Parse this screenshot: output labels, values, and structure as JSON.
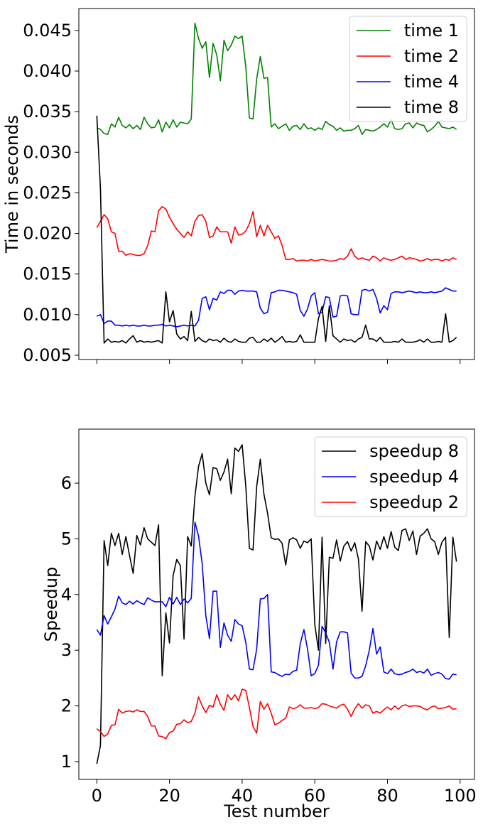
{
  "chart_data": [
    {
      "type": "line",
      "ylabel": "Time in seconds",
      "x": [
        0,
        1,
        2,
        3,
        4,
        5,
        6,
        7,
        8,
        9,
        10,
        11,
        12,
        13,
        14,
        15,
        16,
        17,
        18,
        19,
        20,
        21,
        22,
        23,
        24,
        25,
        26,
        27,
        28,
        29,
        30,
        31,
        32,
        33,
        34,
        35,
        36,
        37,
        38,
        39,
        40,
        41,
        42,
        43,
        44,
        45,
        46,
        47,
        48,
        49,
        50,
        51,
        52,
        53,
        54,
        55,
        56,
        57,
        58,
        59,
        60,
        61,
        62,
        63,
        64,
        65,
        66,
        67,
        68,
        69,
        70,
        71,
        72,
        73,
        74,
        75,
        76,
        77,
        78,
        79,
        80,
        81,
        82,
        83,
        84,
        85,
        86,
        87,
        88,
        89,
        90,
        91,
        92,
        93,
        94,
        95,
        96,
        97,
        98,
        99
      ],
      "series": [
        {
          "name": "time 1",
          "color": "#008000",
          "values": [
            0.033,
            0.0328,
            0.0323,
            0.0322,
            0.0335,
            0.0331,
            0.0343,
            0.0333,
            0.033,
            0.0334,
            0.0329,
            0.0333,
            0.0328,
            0.0343,
            0.0335,
            0.033,
            0.0331,
            0.034,
            0.0325,
            0.0337,
            0.033,
            0.034,
            0.0331,
            0.0337,
            0.0336,
            0.0335,
            0.0341,
            0.0459,
            0.044,
            0.0428,
            0.0436,
            0.0392,
            0.0434,
            0.042,
            0.0388,
            0.0438,
            0.0425,
            0.0432,
            0.0443,
            0.044,
            0.0443,
            0.0405,
            0.0342,
            0.0341,
            0.039,
            0.0418,
            0.0391,
            0.0392,
            0.0331,
            0.0335,
            0.0329,
            0.0332,
            0.0335,
            0.0327,
            0.0332,
            0.0333,
            0.0328,
            0.0335,
            0.0329,
            0.033,
            0.0327,
            0.033,
            0.0328,
            0.0338,
            0.0334,
            0.0332,
            0.0327,
            0.033,
            0.0326,
            0.0327,
            0.0327,
            0.0329,
            0.0333,
            0.0322,
            0.0328,
            0.0327,
            0.0326,
            0.0328,
            0.0331,
            0.0335,
            0.0331,
            0.034,
            0.0329,
            0.0328,
            0.0329,
            0.0335,
            0.0336,
            0.033,
            0.0336,
            0.0334,
            0.0333,
            0.0325,
            0.0328,
            0.0332,
            0.0338,
            0.0331,
            0.033,
            0.0329,
            0.0331,
            0.0328
          ]
        },
        {
          "name": "time 2",
          "color": "#ff0000",
          "values": [
            0.0207,
            0.0215,
            0.0223,
            0.0218,
            0.0202,
            0.02,
            0.0178,
            0.0178,
            0.0173,
            0.0175,
            0.0174,
            0.0173,
            0.0173,
            0.0175,
            0.0185,
            0.0203,
            0.0202,
            0.0228,
            0.0233,
            0.023,
            0.022,
            0.0212,
            0.0205,
            0.02,
            0.0195,
            0.0202,
            0.0197,
            0.0215,
            0.0222,
            0.0223,
            0.0215,
            0.0195,
            0.0197,
            0.0208,
            0.0202,
            0.0202,
            0.0202,
            0.0188,
            0.0208,
            0.0198,
            0.0199,
            0.0203,
            0.0212,
            0.0227,
            0.0196,
            0.021,
            0.0197,
            0.021,
            0.0202,
            0.0194,
            0.0197,
            0.0185,
            0.0168,
            0.0168,
            0.0169,
            0.0166,
            0.0167,
            0.0167,
            0.0166,
            0.0168,
            0.0166,
            0.0167,
            0.0168,
            0.0167,
            0.0166,
            0.0166,
            0.0167,
            0.0169,
            0.0168,
            0.0172,
            0.0181,
            0.0172,
            0.0168,
            0.017,
            0.0168,
            0.0167,
            0.0172,
            0.017,
            0.0166,
            0.017,
            0.0168,
            0.0167,
            0.0168,
            0.017,
            0.0172,
            0.0168,
            0.017,
            0.0169,
            0.0168,
            0.0166,
            0.0167,
            0.0169,
            0.0167,
            0.0168,
            0.0168,
            0.0166,
            0.0168,
            0.0167,
            0.017,
            0.0168
          ]
        },
        {
          "name": "time 4",
          "color": "#0000ff",
          "values": [
            0.0098,
            0.01,
            0.0089,
            0.0092,
            0.0092,
            0.0087,
            0.0087,
            0.0086,
            0.0087,
            0.0086,
            0.0087,
            0.0086,
            0.0086,
            0.0087,
            0.0086,
            0.0086,
            0.0087,
            0.0087,
            0.0088,
            0.0086,
            0.0087,
            0.0086,
            0.0085,
            0.0086,
            0.0087,
            0.0086,
            0.0087,
            0.0086,
            0.0093,
            0.012,
            0.0122,
            0.0106,
            0.012,
            0.0118,
            0.0128,
            0.0126,
            0.013,
            0.013,
            0.0125,
            0.0129,
            0.013,
            0.0129,
            0.0129,
            0.0129,
            0.0128,
            0.0108,
            0.0101,
            0.0103,
            0.0127,
            0.0128,
            0.013,
            0.013,
            0.0129,
            0.0128,
            0.0127,
            0.0125,
            0.0105,
            0.0098,
            0.0107,
            0.0123,
            0.0127,
            0.0101,
            0.0103,
            0.0122,
            0.0121,
            0.0097,
            0.0098,
            0.0123,
            0.0124,
            0.0123,
            0.0101,
            0.01,
            0.01,
            0.013,
            0.0131,
            0.0129,
            0.0131,
            0.012,
            0.0102,
            0.0111,
            0.0106,
            0.0126,
            0.0128,
            0.0128,
            0.0127,
            0.0128,
            0.0129,
            0.0128,
            0.0127,
            0.0128,
            0.0127,
            0.0127,
            0.0128,
            0.0127,
            0.0128,
            0.0129,
            0.0133,
            0.0131,
            0.0129,
            0.0129
          ]
        },
        {
          "name": "time 8",
          "color": "#000000",
          "values": [
            0.0345,
            0.0255,
            0.0065,
            0.007,
            0.0066,
            0.0067,
            0.0066,
            0.0068,
            0.0065,
            0.007,
            0.0074,
            0.0066,
            0.0068,
            0.0066,
            0.0067,
            0.0066,
            0.0067,
            0.0068,
            0.0065,
            0.0128,
            0.0091,
            0.0105,
            0.0076,
            0.007,
            0.0073,
            0.0068,
            0.0104,
            0.0067,
            0.0072,
            0.0068,
            0.0066,
            0.007,
            0.0068,
            0.0069,
            0.0066,
            0.0071,
            0.0067,
            0.0066,
            0.007,
            0.0067,
            0.0066,
            0.0066,
            0.0071,
            0.0072,
            0.0066,
            0.0066,
            0.007,
            0.0067,
            0.0071,
            0.0066,
            0.0069,
            0.0073,
            0.0066,
            0.0067,
            0.0066,
            0.0067,
            0.0075,
            0.0066,
            0.0066,
            0.0066,
            0.0066,
            0.0095,
            0.011,
            0.0067,
            0.0111,
            0.0074,
            0.007,
            0.0066,
            0.007,
            0.0068,
            0.0069,
            0.0066,
            0.007,
            0.0072,
            0.0087,
            0.007,
            0.007,
            0.0067,
            0.0072,
            0.0066,
            0.0066,
            0.0066,
            0.0067,
            0.0066,
            0.007,
            0.0066,
            0.0066,
            0.0066,
            0.0067,
            0.0069,
            0.0066,
            0.007,
            0.0066,
            0.0066,
            0.0067,
            0.0066,
            0.0101,
            0.0066,
            0.0068,
            0.0072
          ]
        }
      ],
      "xlim": [
        -4.95,
        103.95
      ],
      "xticks": [
        0,
        20,
        40,
        60,
        80,
        100
      ],
      "ylim": [
        0.00447,
        0.0477
      ],
      "yticks": [
        0.005,
        {
          "value": 0.01,
          "label": "0.010"
        },
        0.015,
        {
          "value": 0.02,
          "label": "0.020"
        },
        0.025,
        {
          "value": 0.03,
          "label": "0.030"
        },
        0.035,
        {
          "value": 0.04,
          "label": "0.040"
        },
        0.045
      ],
      "legend": "upper right"
    },
    {
      "type": "line",
      "xlabel": "Test number",
      "ylabel": "Speedup",
      "x": [
        0,
        1,
        2,
        3,
        4,
        5,
        6,
        7,
        8,
        9,
        10,
        11,
        12,
        13,
        14,
        15,
        16,
        17,
        18,
        19,
        20,
        21,
        22,
        23,
        24,
        25,
        26,
        27,
        28,
        29,
        30,
        31,
        32,
        33,
        34,
        35,
        36,
        37,
        38,
        39,
        40,
        41,
        42,
        43,
        44,
        45,
        46,
        47,
        48,
        49,
        50,
        51,
        52,
        53,
        54,
        55,
        56,
        57,
        58,
        59,
        60,
        61,
        62,
        63,
        64,
        65,
        66,
        67,
        68,
        69,
        70,
        71,
        72,
        73,
        74,
        75,
        76,
        77,
        78,
        79,
        80,
        81,
        82,
        83,
        84,
        85,
        86,
        87,
        88,
        89,
        90,
        91,
        92,
        93,
        94,
        95,
        96,
        97,
        98,
        99
      ],
      "series": [
        {
          "name": "speedup 8",
          "color": "#000000",
          "values": [
            0.96,
            1.29,
            4.97,
            4.52,
            5.1,
            4.88,
            5.1,
            4.72,
            5.04,
            4.7,
            4.38,
            5.06,
            4.89,
            5.2,
            5.0,
            4.94,
            4.88,
            5.25,
            2.54,
            3.67,
            3.13,
            4.34,
            4.63,
            4.52,
            3.2,
            5.04,
            4.87,
            5.76,
            6.3,
            6.53,
            6.0,
            5.79,
            6.28,
            6.26,
            6.05,
            6.2,
            6.43,
            5.81,
            6.63,
            6.57,
            6.69,
            5.95,
            4.83,
            4.8,
            5.94,
            6.43,
            5.8,
            5.46,
            5.02,
            4.99,
            5.0,
            4.92,
            4.53,
            4.98,
            5.02,
            4.98,
            4.83,
            4.96,
            4.93,
            5.0,
            3.46,
            3.0,
            5.03,
            3.12,
            4.67,
            4.65,
            4.98,
            4.6,
            4.87,
            4.95,
            4.78,
            4.93,
            4.64,
            3.7,
            4.95,
            4.87,
            4.62,
            4.96,
            4.81,
            5.04,
            4.83,
            5.13,
            4.85,
            4.79,
            5.15,
            5.18,
            4.97,
            5.14,
            4.72,
            5.05,
            5.1,
            5.18,
            5.0,
            4.95,
            4.72,
            4.94,
            5.03,
            3.23,
            5.03,
            4.59
          ]
        },
        {
          "name": "speedup 4",
          "color": "#0000ff",
          "values": [
            3.37,
            3.27,
            3.62,
            3.47,
            3.6,
            3.74,
            3.97,
            3.85,
            3.82,
            3.88,
            3.83,
            3.89,
            3.85,
            3.82,
            3.94,
            3.9,
            3.87,
            3.87,
            3.87,
            3.78,
            3.95,
            3.83,
            3.95,
            3.82,
            3.92,
            3.85,
            3.93,
            5.3,
            5.05,
            4.55,
            3.62,
            3.21,
            4.06,
            4.06,
            3.05,
            3.49,
            3.27,
            3.16,
            3.55,
            3.47,
            3.44,
            3.14,
            2.66,
            2.65,
            3.02,
            3.92,
            3.93,
            4.0,
            2.61,
            2.6,
            2.56,
            2.53,
            2.57,
            2.56,
            2.62,
            2.64,
            3.12,
            3.37,
            3.02,
            2.54,
            2.58,
            2.73,
            3.43,
            3.31,
            3.14,
            2.66,
            3.15,
            3.33,
            3.33,
            3.31,
            2.59,
            2.5,
            2.5,
            2.53,
            2.72,
            3.0,
            3.39,
            2.93,
            3.06,
            2.61,
            2.58,
            2.66,
            2.58,
            2.56,
            2.57,
            2.6,
            2.62,
            2.66,
            2.6,
            2.62,
            2.59,
            2.66,
            2.55,
            2.58,
            2.6,
            2.57,
            2.49,
            2.48,
            2.57,
            2.56
          ]
        },
        {
          "name": "speedup 2",
          "color": "#ff0000",
          "values": [
            1.59,
            1.54,
            1.45,
            1.5,
            1.65,
            1.66,
            1.94,
            1.87,
            1.9,
            1.91,
            1.89,
            1.93,
            1.9,
            1.9,
            1.81,
            1.64,
            1.64,
            1.46,
            1.45,
            1.41,
            1.52,
            1.55,
            1.67,
            1.68,
            1.75,
            1.7,
            1.72,
            1.87,
            2.16,
            2.0,
            1.88,
            2.01,
            1.98,
            2.2,
            2.03,
            1.92,
            2.2,
            2.11,
            2.2,
            2.09,
            2.3,
            2.28,
            1.97,
            1.63,
            1.51,
            2.08,
            1.94,
            2.04,
            1.87,
            1.66,
            1.69,
            1.74,
            1.78,
            1.98,
            1.95,
            1.97,
            2.02,
            1.96,
            1.96,
            1.97,
            1.95,
            1.97,
            2.04,
            2.03,
            2.0,
            1.98,
            1.96,
            2.01,
            2.03,
            1.94,
            1.81,
            1.95,
            2.04,
            1.96,
            2.02,
            2.0,
            1.87,
            1.9,
            1.87,
            1.93,
            1.98,
            1.93,
            2.0,
            1.94,
            2.0,
            2.02,
            1.99,
            2.0,
            2.0,
            1.99,
            1.95,
            1.93,
            1.98,
            2.0,
            1.95,
            1.96,
            1.97,
            2.0,
            1.94,
            1.95
          ]
        }
      ],
      "xlim": [
        -4.95,
        103.95
      ],
      "xticks": [
        0,
        20,
        40,
        60,
        80,
        100
      ],
      "ylim": [
        0.68,
        6.97
      ],
      "yticks": [
        1,
        2,
        3,
        4,
        5,
        6
      ],
      "legend": "upper right"
    }
  ]
}
